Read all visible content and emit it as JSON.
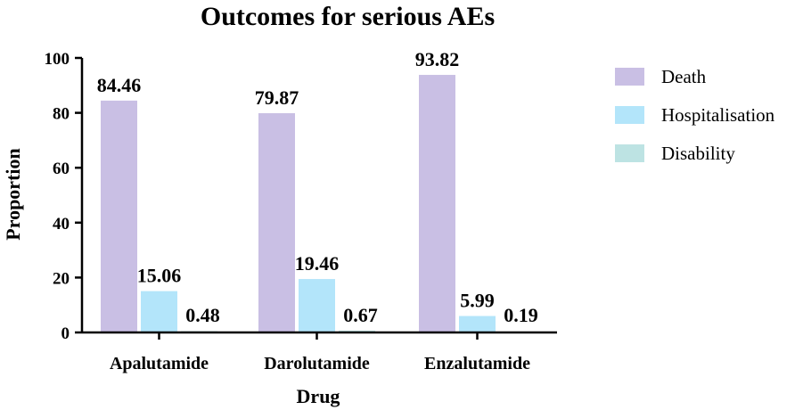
{
  "chart_data": {
    "type": "bar",
    "title": "Outcomes for serious AEs",
    "xlabel": "Drug",
    "ylabel": "Proportion",
    "categories": [
      "Apalutamide",
      "Darolutamide",
      "Enzalutamide"
    ],
    "series": [
      {
        "name": "Death",
        "color": "#c9bfe4",
        "values": [
          84.46,
          79.87,
          93.82
        ],
        "labels": [
          "84.46",
          "79.87",
          "93.82"
        ]
      },
      {
        "name": "Hospitalisation",
        "color": "#b3e5fa",
        "values": [
          15.06,
          19.46,
          5.99
        ],
        "labels": [
          "15.06",
          "19.46",
          "5.99"
        ]
      },
      {
        "name": "Disability",
        "color": "#bde3e3",
        "values": [
          0.48,
          0.67,
          0.19
        ],
        "labels": [
          "0.48",
          "0.67",
          "0.19"
        ]
      }
    ],
    "ylim": [
      0,
      100
    ],
    "yticks": [
      "0",
      "20",
      "40",
      "60",
      "80",
      "100"
    ],
    "grid": false,
    "legend_position": "right"
  }
}
